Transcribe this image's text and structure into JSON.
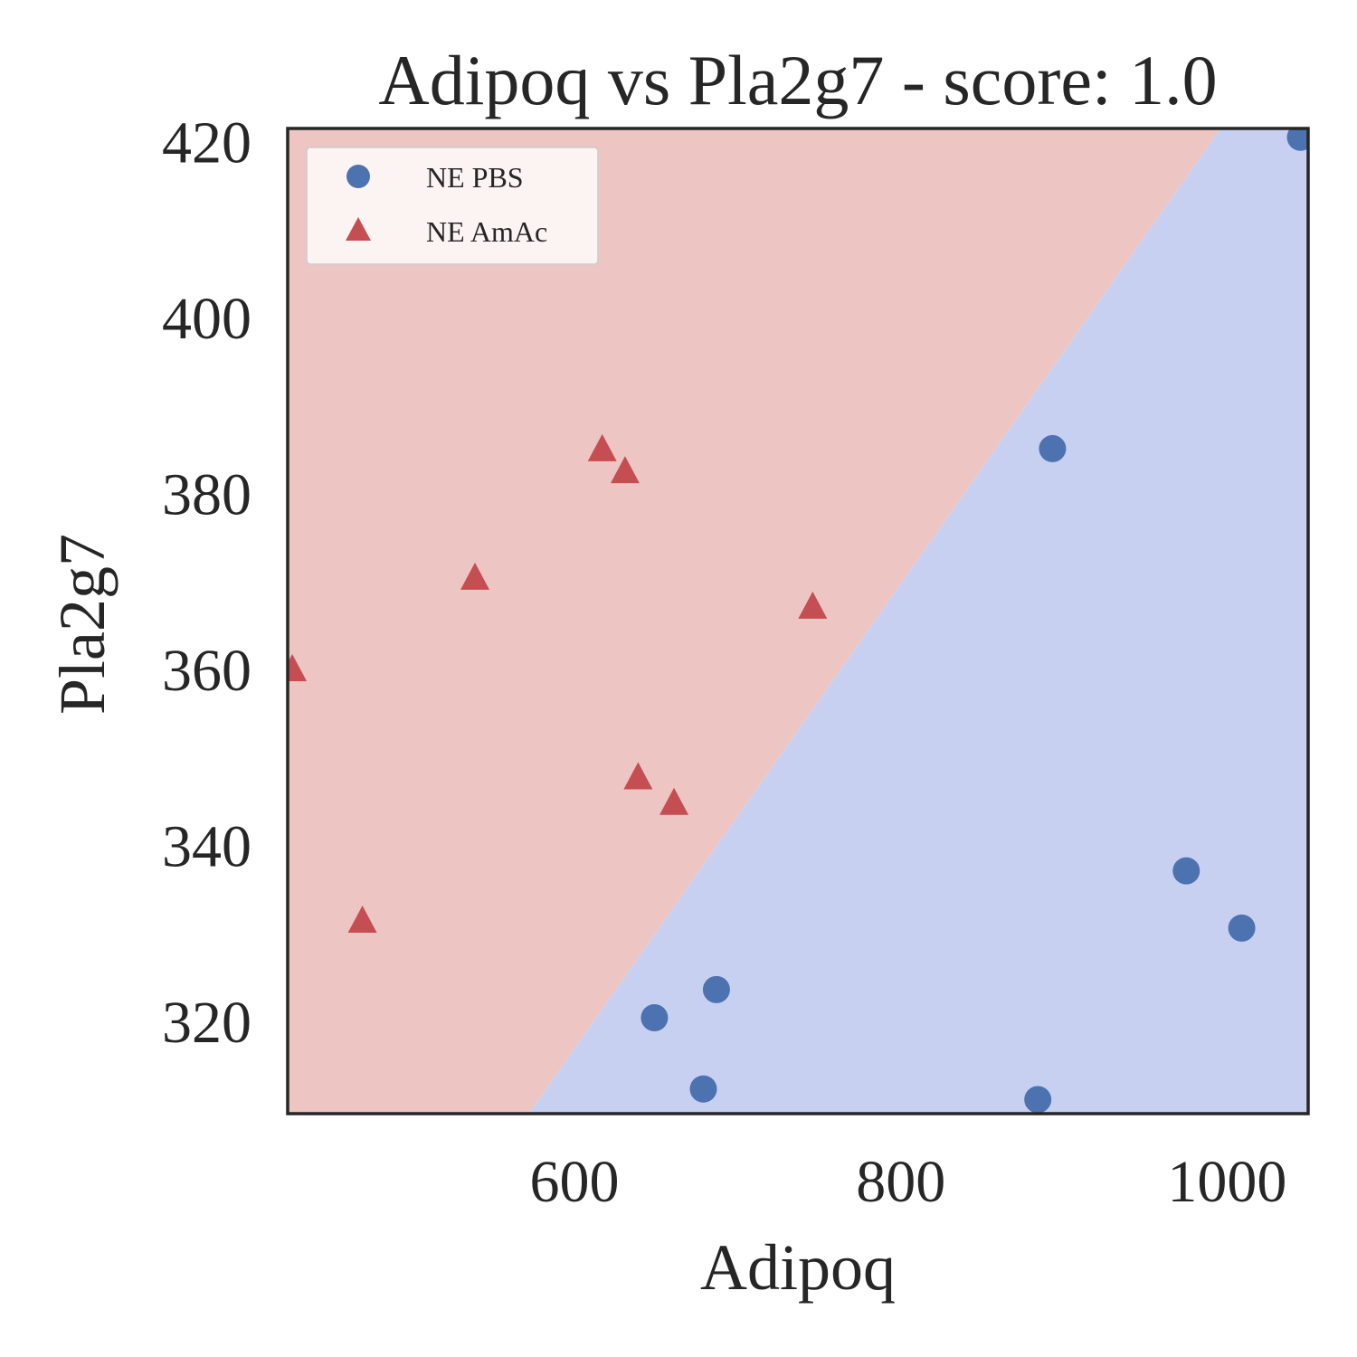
{
  "chart_data": {
    "type": "scatter",
    "title": "Adipoq vs Pla2g7 - score: 1.0",
    "xlabel": "Adipoq",
    "ylabel": "Pla2g7",
    "xlim": [
      424.2,
      1049.7
    ],
    "ylim": [
      309.5,
      421.5
    ],
    "xticks": [
      600,
      800,
      1000
    ],
    "yticks": [
      320,
      340,
      360,
      380,
      400,
      420
    ],
    "grid": false,
    "legend_position": "top-left",
    "decision_boundary": {
      "points": [
        [
          572,
          309.5
        ],
        [
          996,
          421.5
        ]
      ],
      "left_region_class": "NE AmAc",
      "right_region_class": "NE PBS"
    },
    "colors": {
      "ne_pbs_marker": "#4c72b0",
      "ne_amac_marker": "#c44e52",
      "region_amac": "#edc5c3",
      "region_pbs": "#c8d0f2",
      "axes_edge": "#262626"
    },
    "series": [
      {
        "name": "NE PBS",
        "marker": "circle",
        "x": [
          649,
          679,
          687,
          884,
          893,
          975,
          1009,
          1045
        ],
        "y": [
          320.4,
          312.3,
          323.6,
          311.1,
          385.1,
          337.1,
          330.6,
          420.5
        ]
      },
      {
        "name": "NE AmAc",
        "marker": "triangle",
        "x": [
          427,
          470,
          539,
          617,
          631,
          639,
          661,
          746
        ],
        "y": [
          359.9,
          331.3,
          370.3,
          384.9,
          382.4,
          347.6,
          344.7,
          367.0
        ]
      }
    ]
  }
}
